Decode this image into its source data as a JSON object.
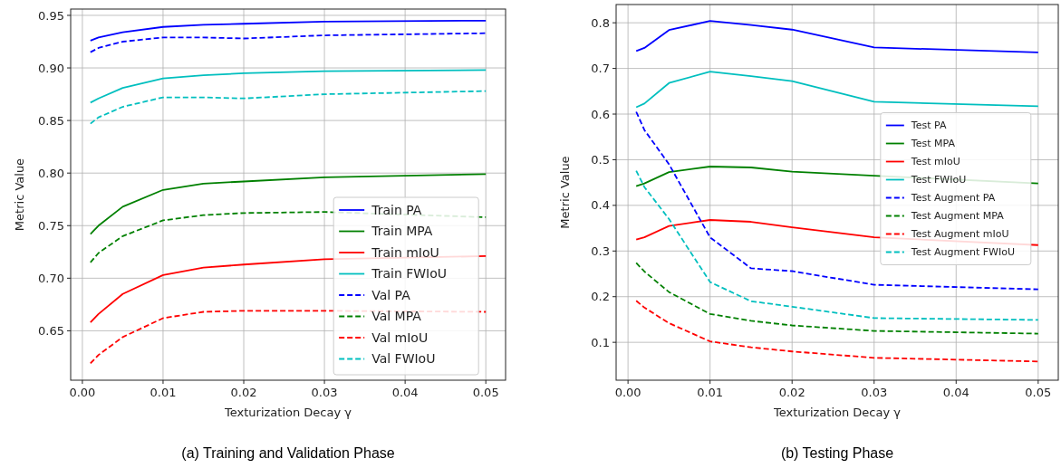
{
  "chart_data": [
    {
      "type": "line",
      "xlabel": "Texturization Decay γ",
      "ylabel": "Metric Value",
      "annotations": [
        "(a)  Training and Validation Phase"
      ],
      "x": [
        0.001,
        0.002,
        0.005,
        0.01,
        0.015,
        0.02,
        0.03,
        0.05
      ],
      "xlim": [
        -0.00145,
        0.05245
      ],
      "xticks": [
        {
          "value": 0,
          "label": "0.00"
        },
        {
          "value": 0.01,
          "label": "0.01"
        },
        {
          "value": 0.02,
          "label": "0.02"
        },
        {
          "value": 0.03,
          "label": "0.03"
        },
        {
          "value": 0.04,
          "label": "0.04"
        },
        {
          "value": 0.05,
          "label": "0.05"
        }
      ],
      "ylim": [
        0.603,
        0.956
      ],
      "yticks": [
        {
          "value": 0.65,
          "label": "0.65"
        },
        {
          "value": 0.7,
          "label": "0.70"
        },
        {
          "value": 0.75,
          "label": "0.75"
        },
        {
          "value": 0.8,
          "label": "0.80"
        },
        {
          "value": 0.85,
          "label": "0.85"
        },
        {
          "value": 0.9,
          "label": "0.90"
        },
        {
          "value": 0.95,
          "label": "0.95"
        }
      ],
      "grid": true,
      "legend": "bottom right",
      "series": [
        {
          "name": "Train PA",
          "color": "#0000ff",
          "line_style": "solid",
          "values": [
            0.926,
            0.929,
            0.934,
            0.939,
            0.941,
            0.942,
            0.944,
            0.945
          ]
        },
        {
          "name": "Train MPA",
          "color": "#008000",
          "line_style": "solid",
          "values": [
            0.742,
            0.75,
            0.768,
            0.784,
            0.79,
            0.792,
            0.796,
            0.799
          ]
        },
        {
          "name": "Train mIoU",
          "color": "#ff0000",
          "line_style": "solid",
          "values": [
            0.658,
            0.666,
            0.685,
            0.703,
            0.71,
            0.713,
            0.718,
            0.721
          ]
        },
        {
          "name": "Train FWIoU",
          "color": "#00bfbf",
          "line_style": "solid",
          "values": [
            0.867,
            0.871,
            0.881,
            0.89,
            0.893,
            0.895,
            0.897,
            0.898
          ]
        },
        {
          "name": "Val PA",
          "color": "#0000ff",
          "line_style": "dashed",
          "values": [
            0.915,
            0.919,
            0.925,
            0.929,
            0.929,
            0.928,
            0.931,
            0.933
          ]
        },
        {
          "name": "Val MPA",
          "color": "#008000",
          "line_style": "dashed",
          "values": [
            0.715,
            0.724,
            0.74,
            0.755,
            0.76,
            0.762,
            0.763,
            0.758
          ]
        },
        {
          "name": "Val mIoU",
          "color": "#ff0000",
          "line_style": "dashed",
          "values": [
            0.619,
            0.627,
            0.644,
            0.662,
            0.668,
            0.669,
            0.669,
            0.668
          ]
        },
        {
          "name": "Val FWIoU",
          "color": "#00bfbf",
          "line_style": "dashed",
          "values": [
            0.847,
            0.853,
            0.863,
            0.872,
            0.872,
            0.871,
            0.875,
            0.878
          ]
        }
      ]
    },
    {
      "type": "line",
      "xlabel": "Texturization Decay γ",
      "ylabel": "Metric Value",
      "annotations": [
        "(b)  Testing Phase"
      ],
      "x": [
        0.001,
        0.002,
        0.005,
        0.01,
        0.015,
        0.02,
        0.03,
        0.05
      ],
      "xlim": [
        -0.00145,
        0.05245
      ],
      "xticks": [
        {
          "value": 0,
          "label": "0.00"
        },
        {
          "value": 0.01,
          "label": "0.01"
        },
        {
          "value": 0.02,
          "label": "0.02"
        },
        {
          "value": 0.03,
          "label": "0.03"
        },
        {
          "value": 0.04,
          "label": "0.04"
        },
        {
          "value": 0.05,
          "label": "0.05"
        }
      ],
      "ylim": [
        0.017,
        0.84
      ],
      "yticks": [
        0.1,
        0.2,
        0.3,
        0.4,
        0.5,
        0.6,
        0.7,
        0.8
      ],
      "grid": true,
      "legend": "right",
      "series": [
        {
          "name": "Test PA",
          "color": "#0000ff",
          "line_style": "solid",
          "values": [
            0.738,
            0.745,
            0.784,
            0.804,
            0.795,
            0.785,
            0.746,
            0.735
          ]
        },
        {
          "name": "Test MPA",
          "color": "#008000",
          "line_style": "solid",
          "values": [
            0.442,
            0.448,
            0.473,
            0.485,
            0.483,
            0.474,
            0.465,
            0.448
          ]
        },
        {
          "name": "Test mIoU",
          "color": "#ff0000",
          "line_style": "solid",
          "values": [
            0.325,
            0.33,
            0.355,
            0.368,
            0.364,
            0.352,
            0.33,
            0.313
          ]
        },
        {
          "name": "Test FWIoU",
          "color": "#00bfbf",
          "line_style": "solid",
          "values": [
            0.615,
            0.623,
            0.668,
            0.693,
            0.683,
            0.672,
            0.627,
            0.617
          ]
        },
        {
          "name": "Test Augment PA",
          "color": "#0000ff",
          "line_style": "dashed",
          "values": [
            0.605,
            0.565,
            0.49,
            0.33,
            0.262,
            0.256,
            0.226,
            0.216
          ]
        },
        {
          "name": "Test Augment MPA",
          "color": "#008000",
          "line_style": "dashed",
          "values": [
            0.274,
            0.255,
            0.21,
            0.162,
            0.147,
            0.137,
            0.125,
            0.119
          ]
        },
        {
          "name": "Test Augment mIoU",
          "color": "#ff0000",
          "line_style": "dashed",
          "values": [
            0.191,
            0.176,
            0.142,
            0.102,
            0.089,
            0.08,
            0.066,
            0.058
          ]
        },
        {
          "name": "Test Augment FWIoU",
          "color": "#00bfbf",
          "line_style": "dashed",
          "values": [
            0.476,
            0.44,
            0.37,
            0.232,
            0.19,
            0.178,
            0.153,
            0.149
          ]
        }
      ]
    }
  ]
}
